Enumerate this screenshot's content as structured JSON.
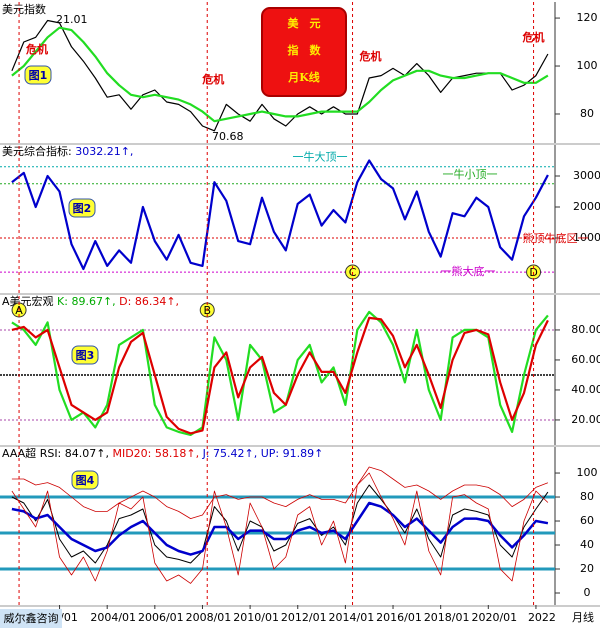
{
  "chart_data": [
    {
      "type": "line",
      "title": "美元指数",
      "x": [
        2000,
        2000.5,
        2001,
        2001.5,
        2002,
        2002.5,
        2003,
        2003.5,
        2004,
        2004.5,
        2005,
        2005.5,
        2006,
        2006.5,
        2007,
        2007.5,
        2008,
        2008.5,
        2009,
        2009.5,
        2010,
        2010.5,
        2011,
        2011.5,
        2012,
        2012.5,
        2013,
        2013.5,
        2014,
        2014.5,
        2015,
        2015.5,
        2016,
        2016.5,
        2017,
        2017.5,
        2018,
        2018.5,
        2019,
        2019.5,
        2020,
        2020.5,
        2021,
        2021.5,
        2022,
        2022.5
      ],
      "xlim": [
        1999.5,
        2022.8
      ],
      "ylim": [
        67.9,
        126.7
      ],
      "yticks": [
        80,
        100,
        120
      ],
      "series": [
        {
          "color": "#000000",
          "values": [
            98,
            110,
            112,
            119,
            118,
            108,
            102,
            95,
            87,
            88,
            82,
            88,
            90,
            85,
            84,
            81,
            75,
            73,
            84,
            80,
            77,
            84,
            78,
            75,
            80,
            83,
            80,
            83,
            80,
            80,
            95,
            96,
            99,
            96,
            101,
            96,
            89,
            95,
            96,
            97,
            97,
            97,
            90,
            92,
            96,
            105
          ]
        },
        {
          "color": "#22dd22",
          "values": [
            96,
            100,
            106,
            112,
            116,
            115,
            110,
            104,
            97,
            92,
            88,
            87,
            88,
            87,
            86,
            84,
            81,
            77,
            78,
            79,
            80,
            81,
            80,
            79,
            79,
            80,
            81,
            81,
            81,
            81,
            85,
            90,
            94,
            96,
            98,
            98,
            96,
            95,
            95,
            96,
            97,
            97,
            95,
            93,
            93,
            96
          ]
        }
      ],
      "annotations": [
        "21.01",
        "70.68"
      ],
      "figure_label": "图1",
      "badge": [
        "美　元",
        "指　数",
        "月K线"
      ],
      "crisis_events": [
        {
          "text": "危机",
          "x": 2000.3
        },
        {
          "text": "危机",
          "x": 2008.2
        },
        {
          "text": "危机",
          "x": 2014.3
        },
        {
          "text": "危机",
          "x": 2021.9
        }
      ]
    },
    {
      "type": "line",
      "header": [
        {
          "text": "美元综合指标: ",
          "color": "#000000"
        },
        {
          "text": "3032.21↑,",
          "color": "#0000cc"
        }
      ],
      "x": [
        2000,
        2000.5,
        2001,
        2001.5,
        2002,
        2002.5,
        2003,
        2003.5,
        2004,
        2004.5,
        2005,
        2005.5,
        2006,
        2006.5,
        2007,
        2007.5,
        2008,
        2008.5,
        2009,
        2009.5,
        2010,
        2010.5,
        2011,
        2011.5,
        2012,
        2012.5,
        2013,
        2013.5,
        2014,
        2014.5,
        2015,
        2015.5,
        2016,
        2016.5,
        2017,
        2017.5,
        2018,
        2018.5,
        2019,
        2019.5,
        2020,
        2020.5,
        2021,
        2021.5,
        2022,
        2022.5
      ],
      "xlim": [
        1999.5,
        2022.8
      ],
      "ylim": [
        -774,
        4000
      ],
      "yticks": [
        1000,
        2000,
        3000
      ],
      "series": [
        {
          "color": "#0000cc",
          "values": [
            2800,
            3100,
            2000,
            3000,
            2500,
            800,
            0,
            900,
            100,
            600,
            200,
            2000,
            900,
            300,
            1100,
            200,
            100,
            2800,
            2200,
            900,
            800,
            2300,
            1200,
            600,
            2100,
            2400,
            1400,
            1900,
            1500,
            2800,
            3500,
            2900,
            2600,
            1600,
            2500,
            1200,
            400,
            1800,
            1700,
            2300,
            2000,
            700,
            300,
            1700,
            2300,
            3032.21
          ]
        }
      ],
      "ref_lines": [
        {
          "value": 3300,
          "label": "一牛大顶一",
          "color": "#00aaaa"
        },
        {
          "value": 2750,
          "label": "一牛小顶一",
          "color": "#22aa22"
        },
        {
          "value": 1000,
          "label": "一熊顶牛底区一",
          "color": "#dd0000"
        },
        {
          "value": -100,
          "label": "一熊大底一",
          "color": "#cc00cc"
        }
      ],
      "markers": [
        {
          "label": "C",
          "x": 2014.3
        },
        {
          "label": "D",
          "x": 2021.9
        }
      ],
      "figure_label": "图2"
    },
    {
      "type": "line",
      "header": [
        {
          "text": "A美元宏观 ",
          "color": "#000000"
        },
        {
          "text": "K: 89.67↑, ",
          "color": "#00aa00"
        },
        {
          "text": "D: 86.34↑,",
          "color": "#dd0000"
        }
      ],
      "x": [
        2000,
        2000.5,
        2001,
        2001.5,
        2002,
        2002.5,
        2003,
        2003.5,
        2004,
        2004.5,
        2005,
        2005.5,
        2006,
        2006.5,
        2007,
        2007.5,
        2008,
        2008.5,
        2009,
        2009.5,
        2010,
        2010.5,
        2011,
        2011.5,
        2012,
        2012.5,
        2013,
        2013.5,
        2014,
        2014.5,
        2015,
        2015.5,
        2016,
        2016.5,
        2017,
        2017.5,
        2018,
        2018.5,
        2019,
        2019.5,
        2020,
        2020.5,
        2021,
        2021.5,
        2022,
        2022.5
      ],
      "xlim": [
        1999.5,
        2022.8
      ],
      "ylim": [
        3.3,
        103.3
      ],
      "yticks": [
        {
          "value": 20,
          "label": "20.00"
        },
        {
          "value": 40,
          "label": "40.00"
        },
        {
          "value": 60,
          "label": "60.00"
        },
        {
          "value": 80,
          "label": "80.00"
        }
      ],
      "series": [
        {
          "color": "#22dd22",
          "values": [
            85,
            80,
            70,
            85,
            40,
            20,
            25,
            15,
            30,
            70,
            75,
            80,
            30,
            15,
            12,
            10,
            15,
            75,
            60,
            20,
            70,
            60,
            25,
            30,
            60,
            70,
            45,
            55,
            30,
            80,
            92,
            85,
            70,
            45,
            80,
            40,
            20,
            75,
            80,
            80,
            75,
            30,
            12,
            50,
            80,
            89.67
          ]
        },
        {
          "color": "#dd0000",
          "values": [
            80,
            82,
            75,
            80,
            55,
            30,
            25,
            20,
            25,
            55,
            72,
            78,
            50,
            22,
            14,
            11,
            13,
            55,
            65,
            35,
            55,
            62,
            38,
            30,
            50,
            65,
            52,
            52,
            38,
            65,
            88,
            87,
            76,
            55,
            70,
            50,
            28,
            60,
            78,
            80,
            77,
            45,
            20,
            38,
            70,
            86.34
          ]
        }
      ],
      "ref_lines": [
        {
          "value": 80,
          "color": "#aa44aa"
        },
        {
          "value": 50,
          "color": "#000000"
        },
        {
          "value": 20,
          "color": "#aa44aa"
        }
      ],
      "markers": [
        {
          "label": "A",
          "x": 2000.3
        },
        {
          "label": "B",
          "x": 2008.2
        }
      ],
      "figure_label": "图3"
    },
    {
      "type": "line",
      "header": [
        {
          "text": "AAA超 ",
          "color": "#000000"
        },
        {
          "text": "RSI: 84.07↑, ",
          "color": "#000000"
        },
        {
          "text": "MID20: 58.18↑, ",
          "color": "#dd0000"
        },
        {
          "text": "J: 75.42↑, ",
          "color": "#0000cc"
        },
        {
          "text": "UP: 91.89↑",
          "color": "#0000cc"
        }
      ],
      "x": [
        2000,
        2000.5,
        2001,
        2001.5,
        2002,
        2002.5,
        2003,
        2003.5,
        2004,
        2004.5,
        2005,
        2005.5,
        2006,
        2006.5,
        2007,
        2007.5,
        2008,
        2008.5,
        2009,
        2009.5,
        2010,
        2010.5,
        2011,
        2011.5,
        2012,
        2012.5,
        2013,
        2013.5,
        2014,
        2014.5,
        2015,
        2015.5,
        2016,
        2016.5,
        2017,
        2017.5,
        2018,
        2018.5,
        2019,
        2019.5,
        2020,
        2020.5,
        2021,
        2021.5,
        2022,
        2022.5
      ],
      "xlim": [
        1999.5,
        2022.8
      ],
      "ylim": [
        -10,
        121.7
      ],
      "yticks": [
        0,
        20,
        40,
        60,
        80,
        100
      ],
      "series": [
        {
          "color": "#000000",
          "width": 1,
          "values": [
            80,
            75,
            60,
            78,
            45,
            30,
            35,
            25,
            40,
            62,
            65,
            70,
            40,
            30,
            28,
            25,
            35,
            72,
            60,
            35,
            60,
            55,
            35,
            40,
            58,
            62,
            48,
            55,
            40,
            75,
            90,
            78,
            65,
            50,
            70,
            45,
            30,
            65,
            70,
            68,
            65,
            40,
            30,
            55,
            70,
            84.07
          ]
        },
        {
          "color": "#0000cc",
          "width": 2.5,
          "values": [
            70,
            68,
            62,
            65,
            55,
            45,
            40,
            35,
            38,
            48,
            55,
            60,
            50,
            40,
            35,
            32,
            35,
            55,
            55,
            45,
            52,
            52,
            45,
            45,
            52,
            55,
            50,
            52,
            45,
            60,
            75,
            72,
            65,
            55,
            62,
            52,
            42,
            55,
            62,
            62,
            60,
            48,
            38,
            48,
            60,
            58.18
          ]
        },
        {
          "color": "#cc0000",
          "width": 0.8,
          "values": [
            85,
            70,
            55,
            85,
            30,
            15,
            30,
            10,
            35,
            75,
            70,
            80,
            25,
            10,
            15,
            8,
            20,
            85,
            55,
            15,
            75,
            55,
            20,
            30,
            65,
            72,
            40,
            60,
            25,
            90,
            100,
            80,
            62,
            40,
            85,
            35,
            15,
            80,
            82,
            75,
            70,
            20,
            10,
            60,
            85,
            75.42
          ]
        },
        {
          "color": "#cc0000",
          "width": 0.8,
          "values": [
            95,
            95,
            90,
            92,
            88,
            80,
            72,
            68,
            68,
            75,
            80,
            85,
            80,
            72,
            68,
            62,
            65,
            80,
            82,
            78,
            80,
            80,
            75,
            72,
            78,
            82,
            78,
            78,
            75,
            90,
            105,
            102,
            95,
            88,
            90,
            85,
            78,
            85,
            90,
            90,
            88,
            82,
            72,
            78,
            88,
            91.89
          ]
        }
      ],
      "ref_lines": [
        {
          "value": 80,
          "color": "#2299bb"
        },
        {
          "value": 50,
          "color": "#2299bb"
        },
        {
          "value": 20,
          "color": "#2299bb"
        }
      ],
      "xticks": [
        {
          "value": 2002,
          "label": "2/01"
        },
        {
          "value": 2004,
          "label": "2004/01"
        },
        {
          "value": 2006,
          "label": "2006/01"
        },
        {
          "value": 2008,
          "label": "2008/01"
        },
        {
          "value": 2010,
          "label": "2010/01"
        },
        {
          "value": 2012,
          "label": "2012/01"
        },
        {
          "value": 2014,
          "label": "2014/01"
        },
        {
          "value": 2016,
          "label": "2016/01"
        },
        {
          "value": 2018,
          "label": "2018/01"
        },
        {
          "value": 2020,
          "label": "2020/01"
        },
        {
          "value": 2022,
          "label": "2022"
        }
      ],
      "figure_label": "图4"
    }
  ],
  "footer": {
    "brand": "威尔鑫咨询",
    "period": "月线"
  }
}
